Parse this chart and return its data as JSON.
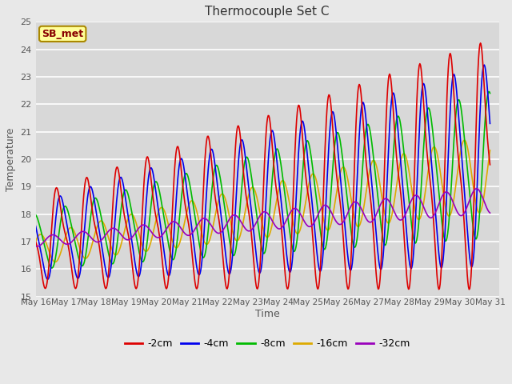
{
  "title": "Thermocouple Set C",
  "xlabel": "Time",
  "ylabel": "Temperature",
  "ylim": [
    15.0,
    25.0
  ],
  "yticks": [
    15.0,
    16.0,
    17.0,
    18.0,
    19.0,
    20.0,
    21.0,
    22.0,
    23.0,
    24.0,
    25.0
  ],
  "series_labels": [
    "-2cm",
    "-4cm",
    "-8cm",
    "-16cm",
    "-32cm"
  ],
  "series_colors": [
    "#dd0000",
    "#0000ee",
    "#00bb00",
    "#ddaa00",
    "#9900bb"
  ],
  "annotation_text": "SB_met",
  "annotation_color": "#880000",
  "annotation_bg": "#ffff99",
  "annotation_border": "#aa8800",
  "plot_bg_color": "#d8d8d8",
  "fig_bg_color": "#e8e8e8",
  "grid_color": "#ffffff",
  "start_day": 16,
  "end_day": 31,
  "n_points_per_day": 48
}
